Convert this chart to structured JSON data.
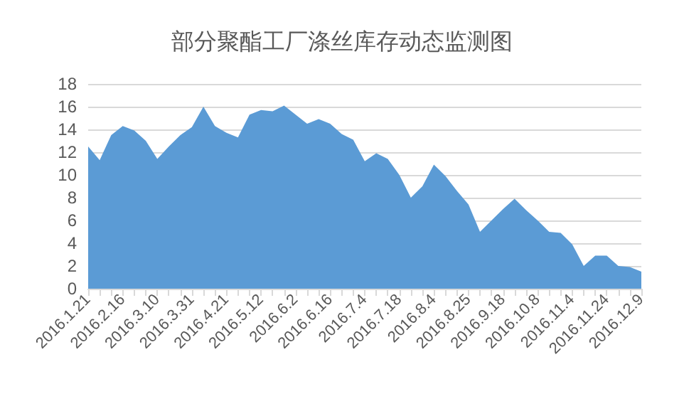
{
  "chart_data": {
    "type": "area",
    "title": "部分聚酯工厂涤丝库存动态监测图",
    "categories": [
      "2016.1.21",
      null,
      null,
      "2016.2.16",
      null,
      null,
      "2016.3.10",
      null,
      null,
      "2016.3.31",
      null,
      null,
      "2016.4.21",
      null,
      null,
      "2016.5.12",
      null,
      null,
      "2016.6.2",
      null,
      null,
      "2016.6.16",
      null,
      null,
      "2016.7.4",
      null,
      null,
      "2016.7.18",
      null,
      null,
      "2016.8.4",
      null,
      null,
      "2016.8.25",
      null,
      null,
      "2016.9.18",
      null,
      null,
      "2016.10.8",
      null,
      null,
      "2016.11.4",
      null,
      null,
      "2016.11.24",
      null,
      null,
      "2016.12.9"
    ],
    "series": [
      {
        "color": "#5b9bd5",
        "values": [
          12.5,
          11.3,
          13.5,
          14.3,
          13.9,
          13.0,
          11.4,
          12.5,
          13.5,
          14.2,
          16.0,
          14.3,
          13.7,
          13.3,
          15.3,
          15.7,
          15.6,
          16.1,
          15.3,
          14.5,
          14.9,
          14.5,
          13.6,
          13.1,
          11.2,
          11.9,
          11.4,
          10.0,
          8.0,
          9.0,
          10.9,
          9.9,
          8.6,
          7.4,
          5.0,
          6.0,
          7.0,
          7.9,
          6.9,
          6.0,
          5.0,
          4.9,
          3.9,
          2.0,
          2.9,
          2.9,
          2.0,
          1.9,
          1.5
        ]
      }
    ],
    "ylim": [
      0,
      18
    ],
    "yticks": [
      0,
      2,
      4,
      6,
      8,
      10,
      12,
      14,
      16,
      18
    ],
    "grid": "y"
  }
}
